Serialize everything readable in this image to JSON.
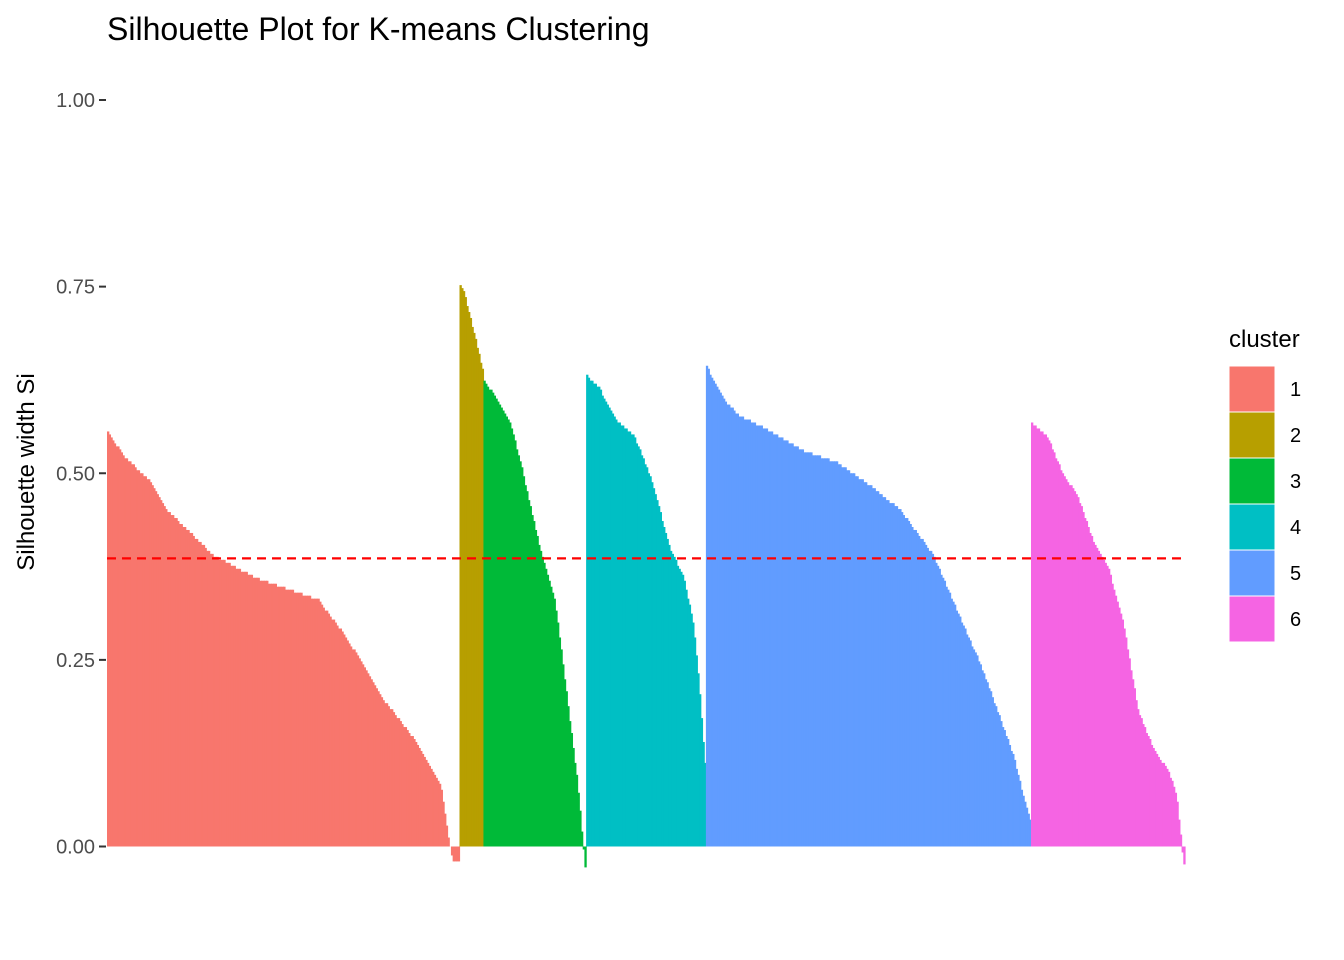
{
  "chart_data": {
    "type": "bar",
    "title": "Silhouette Plot for K-means Clustering",
    "xlabel": "",
    "ylabel": "Silhouette width Si",
    "ylim": [
      -0.075,
      1.05
    ],
    "yticks": [
      "0.00",
      "0.25",
      "0.50",
      "0.75",
      "1.00"
    ],
    "grid": false,
    "average_silhouette": 0.386,
    "reference_line": {
      "style": "dashed",
      "color": "#FF0000"
    },
    "legend": {
      "title": "cluster",
      "position": "right"
    },
    "series": [
      {
        "name": "1",
        "color": "#F8766D",
        "count": 206,
        "profile": [
          [
            0,
            0.555
          ],
          [
            0.05,
            0.52
          ],
          [
            0.12,
            0.49
          ],
          [
            0.17,
            0.45
          ],
          [
            0.3,
            0.39
          ],
          [
            0.42,
            0.36
          ],
          [
            0.6,
            0.33
          ],
          [
            0.68,
            0.28
          ],
          [
            0.78,
            0.2
          ],
          [
            0.88,
            0.14
          ],
          [
            0.95,
            0.08
          ],
          [
            0.975,
            0.0
          ],
          [
            0.985,
            -0.02
          ],
          [
            1,
            -0.022
          ]
        ]
      },
      {
        "name": "2",
        "color": "#B79F00",
        "count": 14,
        "profile": [
          [
            0,
            0.752
          ],
          [
            0.15,
            0.745
          ],
          [
            0.35,
            0.72
          ],
          [
            0.6,
            0.69
          ],
          [
            0.8,
            0.665
          ],
          [
            1,
            0.638
          ]
        ]
      },
      {
        "name": "3",
        "color": "#00BA38",
        "count": 60,
        "profile": [
          [
            0,
            0.622
          ],
          [
            0.1,
            0.605
          ],
          [
            0.25,
            0.57
          ],
          [
            0.35,
            0.52
          ],
          [
            0.45,
            0.46
          ],
          [
            0.55,
            0.4
          ],
          [
            0.7,
            0.33
          ],
          [
            0.82,
            0.2
          ],
          [
            0.92,
            0.09
          ],
          [
            0.98,
            0.0
          ],
          [
            1,
            -0.03
          ]
        ]
      },
      {
        "name": "4",
        "color": "#00BFC4",
        "count": 70,
        "profile": [
          [
            0,
            0.63
          ],
          [
            0.1,
            0.615
          ],
          [
            0.25,
            0.57
          ],
          [
            0.4,
            0.55
          ],
          [
            0.55,
            0.49
          ],
          [
            0.7,
            0.4
          ],
          [
            0.82,
            0.36
          ],
          [
            0.9,
            0.3
          ],
          [
            0.95,
            0.22
          ],
          [
            1,
            0.11
          ]
        ]
      },
      {
        "name": "5",
        "color": "#619CFF",
        "count": 190,
        "profile": [
          [
            0,
            0.643
          ],
          [
            0.05,
            0.6
          ],
          [
            0.1,
            0.577
          ],
          [
            0.18,
            0.56
          ],
          [
            0.3,
            0.53
          ],
          [
            0.4,
            0.515
          ],
          [
            0.5,
            0.485
          ],
          [
            0.6,
            0.45
          ],
          [
            0.7,
            0.39
          ],
          [
            0.78,
            0.31
          ],
          [
            0.85,
            0.24
          ],
          [
            0.9,
            0.18
          ],
          [
            0.95,
            0.12
          ],
          [
            0.98,
            0.065
          ],
          [
            1,
            0.035
          ]
        ]
      },
      {
        "name": "6",
        "color": "#F564E3",
        "count": 90,
        "profile": [
          [
            0,
            0.567
          ],
          [
            0.1,
            0.55
          ],
          [
            0.2,
            0.5
          ],
          [
            0.3,
            0.47
          ],
          [
            0.4,
            0.41
          ],
          [
            0.5,
            0.375
          ],
          [
            0.6,
            0.3
          ],
          [
            0.7,
            0.18
          ],
          [
            0.8,
            0.13
          ],
          [
            0.9,
            0.1
          ],
          [
            0.95,
            0.07
          ],
          [
            0.985,
            0.0
          ],
          [
            1,
            -0.025
          ]
        ]
      }
    ]
  }
}
